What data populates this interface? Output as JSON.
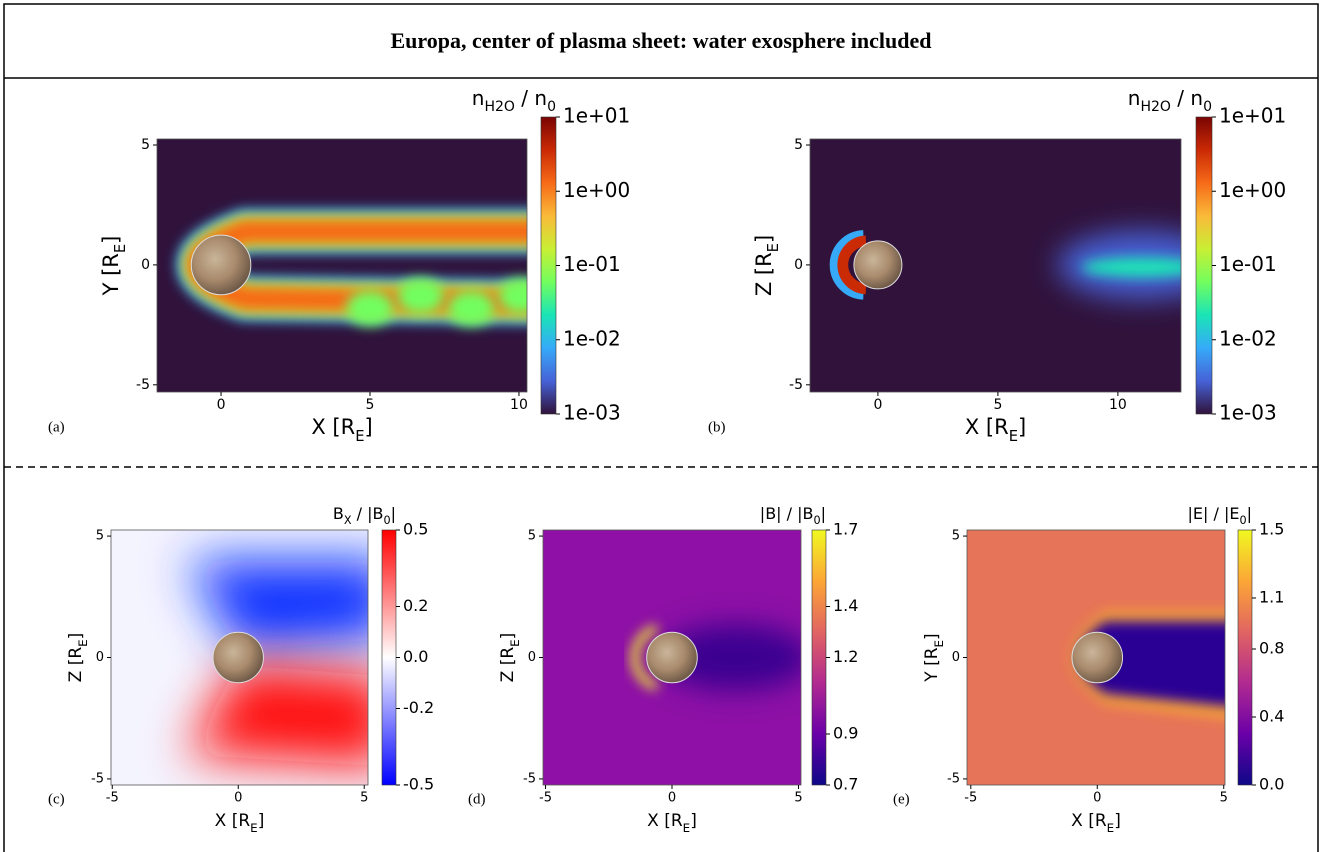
{
  "title": "Europa, center of plasma sheet: water exosphere included",
  "chart_data": [
    {
      "type": "heatmap",
      "panel": "(a)",
      "x_label": [
        "X [R",
        "E",
        "]"
      ],
      "y_label": [
        "Y [R",
        "E",
        "]"
      ],
      "colorbar_label": [
        "n",
        "H2O",
        " / n",
        "0"
      ],
      "xlim": [
        -2.15,
        10.27
      ],
      "xticks": [
        0,
        5,
        10
      ],
      "ylim": [
        -5.3,
        5.25
      ],
      "yticks": [
        -5,
        0,
        5
      ],
      "colormap": "turbo",
      "cscale": "log",
      "clim": [
        0.001,
        10
      ],
      "cticks": [
        {
          "value": 0.001,
          "label": "1e-03"
        },
        {
          "value": 0.01,
          "label": "1e-02"
        },
        {
          "value": 0.1,
          "label": "1e-01"
        },
        {
          "value": 1,
          "label": "1e+00"
        },
        {
          "value": 10,
          "label": "1e+01"
        }
      ]
    },
    {
      "type": "heatmap",
      "panel": "(b)",
      "x_label": [
        "X [R",
        "E",
        "]"
      ],
      "y_label": [
        "Z [R",
        "E",
        "]"
      ],
      "colorbar_label": [
        "n",
        "H2O",
        " / n",
        "0"
      ],
      "xlim": [
        -2.83,
        12.63
      ],
      "xticks": [
        0,
        5,
        10
      ],
      "ylim": [
        -5.3,
        5.25
      ],
      "yticks": [
        -5,
        0,
        5
      ],
      "colormap": "turbo",
      "cscale": "log",
      "clim": [
        0.001,
        10
      ],
      "cticks": [
        {
          "value": 0.001,
          "label": "1e-03"
        },
        {
          "value": 0.01,
          "label": "1e-02"
        },
        {
          "value": 0.1,
          "label": "1e-01"
        },
        {
          "value": 1,
          "label": "1e+00"
        },
        {
          "value": 10,
          "label": "1e+01"
        }
      ]
    },
    {
      "type": "heatmap",
      "panel": "(c)",
      "x_label": [
        "X [R",
        "E",
        "]"
      ],
      "y_label": [
        "Z [R",
        "E",
        "]"
      ],
      "colorbar_label": [
        "B",
        "X",
        " / |B",
        "0",
        "|"
      ],
      "xlim": [
        -5.05,
        5.15
      ],
      "xticks": [
        -5,
        0,
        5
      ],
      "ylim": [
        -5.25,
        5.25
      ],
      "yticks": [
        -5,
        0,
        5
      ],
      "colormap": "bwr",
      "cscale": "linear",
      "clim": [
        -0.5,
        0.5
      ],
      "cticks": [
        -0.5,
        -0.2,
        {
          "value": 0,
          "label": "0.0"
        },
        0.2,
        0.5
      ]
    },
    {
      "type": "heatmap",
      "panel": "(d)",
      "x_label": [
        "X [R",
        "E",
        "]"
      ],
      "y_label": [
        "Z [R",
        "E",
        "]"
      ],
      "colorbar_label": [
        "|B| / |B",
        "0",
        "|"
      ],
      "xlim": [
        -5.1,
        5.1
      ],
      "xticks": [
        -5,
        0,
        5
      ],
      "ylim": [
        -5.25,
        5.25
      ],
      "yticks": [
        -5,
        0,
        5
      ],
      "colormap": "plasma",
      "cscale": "linear",
      "clim": [
        0.7,
        1.7
      ],
      "cticks": [
        0.7,
        0.9,
        1.2,
        1.4,
        1.7
      ]
    },
    {
      "type": "heatmap",
      "panel": "(e)",
      "x_label": [
        "X [R",
        "E",
        "]"
      ],
      "y_label": [
        "Y [R",
        "E",
        "]"
      ],
      "colorbar_label": [
        "|E| / |E",
        "0",
        "|"
      ],
      "xlim": [
        -5.15,
        5.05
      ],
      "xticks": [
        -5,
        0,
        5
      ],
      "ylim": [
        -5.25,
        5.25
      ],
      "yticks": [
        -5,
        0,
        5
      ],
      "colormap": "plasma",
      "cscale": "linear",
      "clim": [
        0,
        1.5
      ],
      "cticks": [
        {
          "value": 0,
          "label": "0.0"
        },
        0.4,
        0.8,
        1.1,
        1.5
      ]
    }
  ]
}
